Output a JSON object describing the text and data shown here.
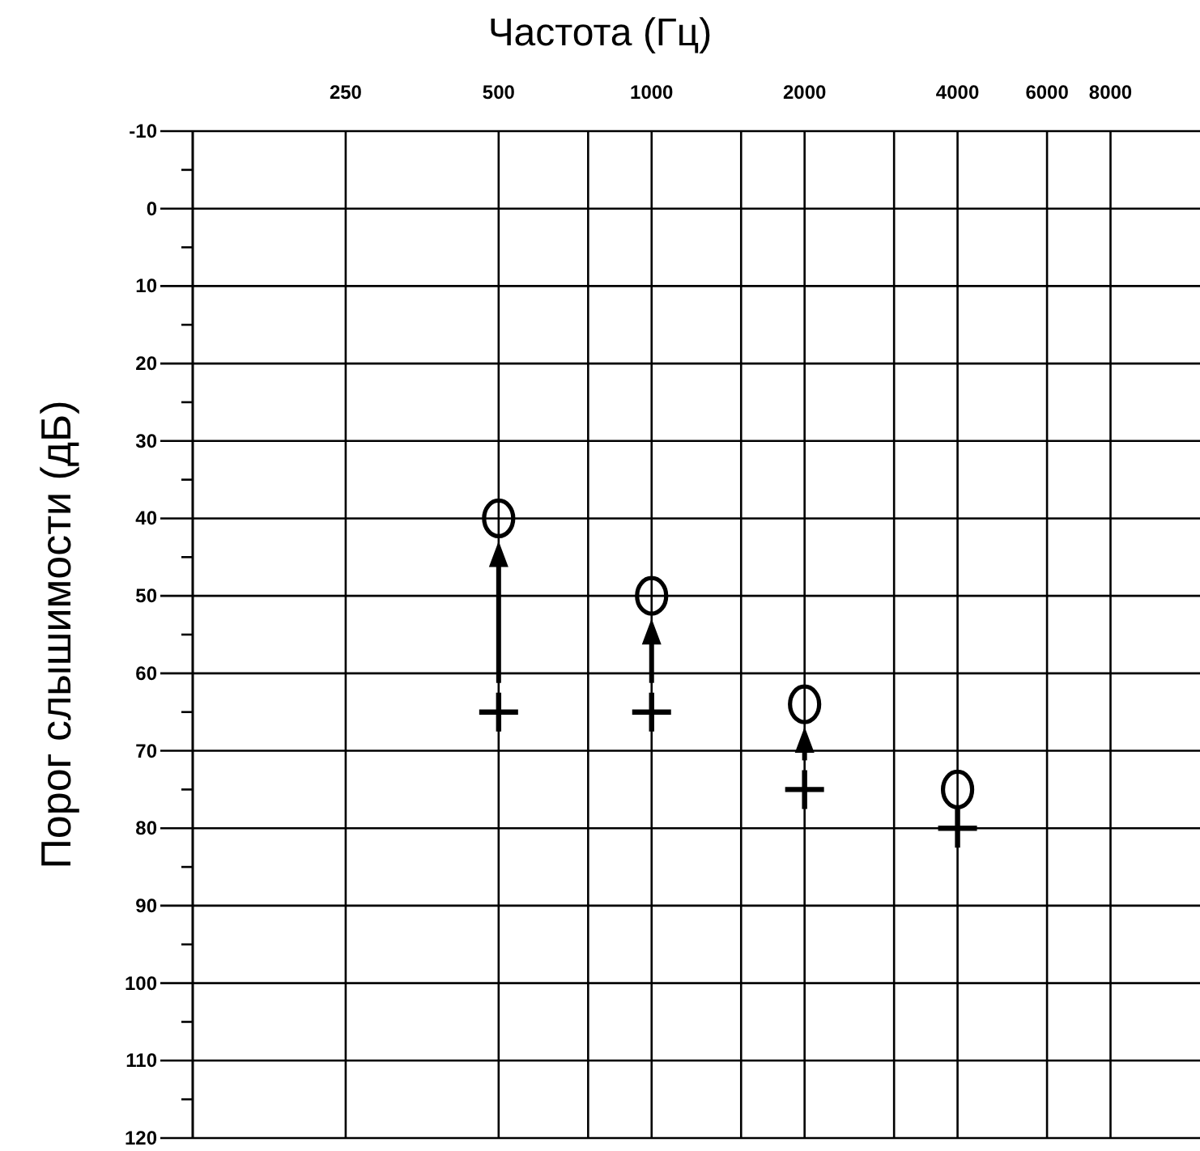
{
  "chart_data": {
    "type": "scatter",
    "xlabel": "Частота (Гц)",
    "ylabel": "Порог слышимости (дБ)",
    "x": [
      500,
      1000,
      2000,
      4000
    ],
    "series": [
      {
        "color": "#000000",
        "marker": "circle",
        "values": [
          40,
          50,
          64,
          75
        ]
      },
      {
        "color": "#000000",
        "marker": "cross",
        "values": [
          65,
          65,
          75,
          80
        ]
      }
    ],
    "log": "x",
    "xlim": [
      125,
      12000
    ],
    "xticks": [
      {
        "value": 125,
        "label": null
      },
      250,
      500,
      {
        "value": 750,
        "label": null
      },
      1000,
      {
        "value": 1500,
        "label": null
      },
      2000,
      {
        "value": 3000,
        "label": null
      },
      4000,
      6000,
      8000
    ],
    "ylim": [
      120,
      -10
    ],
    "yticks": [
      -10,
      {
        "value": -5,
        "label": null
      },
      0,
      {
        "value": 5,
        "label": null
      },
      10,
      {
        "value": 15,
        "label": null
      },
      20,
      {
        "value": 25,
        "label": null
      },
      30,
      {
        "value": 35,
        "label": null
      },
      40,
      {
        "value": 45,
        "label": null
      },
      50,
      {
        "value": 55,
        "label": null
      },
      60,
      {
        "value": 65,
        "label": null
      },
      70,
      {
        "value": 75,
        "label": null
      },
      80,
      {
        "value": 85,
        "label": null
      },
      90,
      {
        "value": 95,
        "label": null
      },
      100,
      {
        "value": 105,
        "label": null
      },
      110,
      {
        "value": 115,
        "label": null
      },
      120
    ],
    "grid": true,
    "legend": false
  }
}
